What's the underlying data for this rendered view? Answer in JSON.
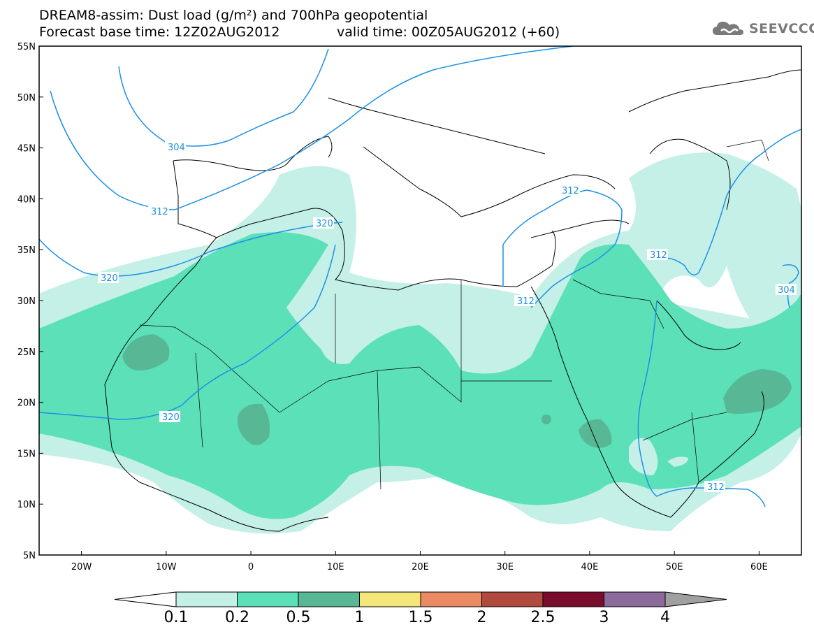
{
  "title": {
    "line1": "DREAM8-assim: Dust load (g/m²) and 700hPa geopotential",
    "line2": "Forecast base time: 12Z02AUG2012",
    "valid": "valid time: 00Z05AUG2012 (+60)"
  },
  "logo": {
    "text": "SEEVCCC",
    "icon": "cloud-icon"
  },
  "map": {
    "lon_range": [
      -25,
      65
    ],
    "lat_range": [
      5,
      55
    ],
    "lat_labels": [
      "55N",
      "50N",
      "45N",
      "40N",
      "35N",
      "30N",
      "25N",
      "20N",
      "15N",
      "10N",
      "5N"
    ],
    "lon_labels": [
      "20W",
      "10W",
      "0",
      "10E",
      "20E",
      "30E",
      "40E",
      "50E",
      "60E"
    ],
    "contour_labels": [
      {
        "text": "304"
      },
      {
        "text": "312"
      },
      {
        "text": "320"
      },
      {
        "text": "320"
      },
      {
        "text": "320"
      },
      {
        "text": "312"
      },
      {
        "text": "312"
      },
      {
        "text": "312"
      },
      {
        "text": "312"
      },
      {
        "text": "304"
      }
    ],
    "colors": {
      "level_0.1": "#c4f0e8",
      "level_0.2": "#5ce0b8",
      "level_0.5": "#58b896",
      "level_1": "#f5e67a",
      "contour": "#1e90e6",
      "coast": "#000000"
    }
  },
  "colorbar": {
    "labels": [
      "0.1",
      "0.2",
      "0.5",
      "1",
      "1.5",
      "2",
      "2.5",
      "3",
      "4"
    ],
    "colors": [
      "#ffffff",
      "#c4f0e8",
      "#5ce0b8",
      "#58b896",
      "#f5e67a",
      "#e98a62",
      "#b04a3e",
      "#7a0c2c",
      "#8c6a9c",
      "#a0a0a0"
    ]
  }
}
